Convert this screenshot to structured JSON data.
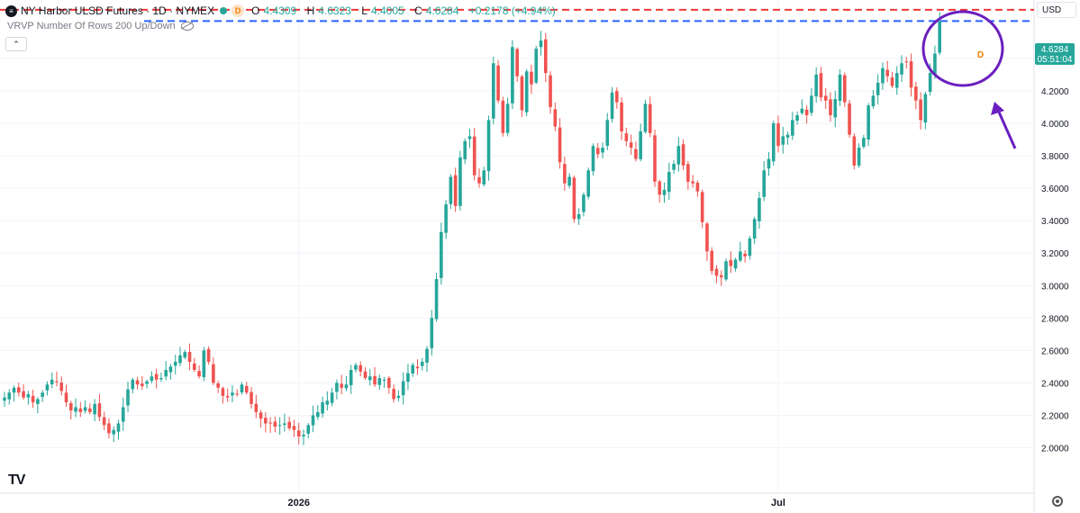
{
  "header": {
    "symbol_icon": "exchange-logo-icon",
    "title": "NY Harbor ULSD Futures · 1D · NYMEX",
    "status_dot_color": "#26a69a",
    "delay_badge": "D",
    "ohlc": {
      "o_label": "O",
      "o": "4.4309",
      "h_label": "H",
      "h": "4.6323",
      "l_label": "L",
      "l": "4.4005",
      "c_label": "C",
      "c": "4.6284",
      "change": "+0.2178 (+4.94%)"
    }
  },
  "indicator": {
    "label": "VRVP Number Of Rows 200 Up/Down",
    "visibility_icon": "eye-hidden-icon"
  },
  "collapse_icon": "chevron-up-icon",
  "currency": "USD",
  "last_price": {
    "value": "4.6284",
    "countdown": "05:51:04",
    "marker": "D"
  },
  "logo": "TV",
  "settings_icon": "gear-icon",
  "colors": {
    "up": "#26a69a",
    "down": "#ef5350",
    "red_line": "#ef3838",
    "blue_line": "#2962ff",
    "annotation": "#6a1fbf"
  },
  "chart_data": {
    "type": "candlestick",
    "title": "NY Harbor ULSD Futures",
    "y_ticks": [
      "2.0000",
      "2.2000",
      "2.4000",
      "2.6000",
      "2.8000",
      "3.0000",
      "3.2000",
      "3.4000",
      "3.6000",
      "3.8000",
      "4.0000",
      "4.2000",
      "4.4000"
    ],
    "ylim": [
      1.72,
      4.76
    ],
    "x_labels": [
      "2026",
      "Jul"
    ],
    "x_label_index": [
      62,
      163
    ],
    "horizontal_lines": [
      {
        "value": 4.7,
        "color": "#ef3838",
        "style": "dashed"
      },
      {
        "value": 4.63,
        "color": "#2962ff",
        "style": "dashed"
      }
    ],
    "annotations": [
      "circle around last candle",
      "arrow pointing to last candle"
    ],
    "series": [
      {
        "name": "",
        "closes": [
          2.31,
          2.34,
          2.37,
          2.34,
          2.31,
          2.33,
          2.28,
          2.3,
          2.34,
          2.39,
          2.42,
          2.41,
          2.35,
          2.28,
          2.23,
          2.25,
          2.22,
          2.25,
          2.22,
          2.27,
          2.19,
          2.14,
          2.09,
          2.11,
          2.15,
          2.25,
          2.36,
          2.42,
          2.39,
          2.38,
          2.41,
          2.44,
          2.42,
          2.43,
          2.48,
          2.5,
          2.53,
          2.57,
          2.59,
          2.53,
          2.48,
          2.44,
          2.6,
          2.53,
          2.4,
          2.37,
          2.32,
          2.31,
          2.34,
          2.33,
          2.39,
          2.34,
          2.27,
          2.22,
          2.18,
          2.15,
          2.15,
          2.13,
          2.14,
          2.15,
          2.12,
          2.11,
          2.07,
          2.08,
          2.14,
          2.2,
          2.22,
          2.28,
          2.29,
          2.34,
          2.4,
          2.37,
          2.39,
          2.48,
          2.51,
          2.47,
          2.43,
          2.44,
          2.39,
          2.43,
          2.42,
          2.37,
          2.3,
          2.32,
          2.41,
          2.46,
          2.51,
          2.49,
          2.53,
          2.61,
          2.8,
          3.04,
          3.33,
          3.5,
          3.67,
          3.49,
          3.79,
          3.89,
          3.92,
          3.68,
          3.63,
          3.71,
          4.02,
          4.37,
          4.14,
          3.94,
          4.12,
          4.47,
          4.29,
          4.08,
          4.32,
          4.24,
          4.46,
          4.51,
          4.31,
          4.1,
          3.98,
          3.76,
          3.63,
          3.67,
          3.41,
          3.44,
          3.56,
          3.71,
          3.86,
          3.81,
          3.85,
          4.02,
          4.19,
          4.13,
          3.95,
          3.89,
          3.85,
          3.78,
          3.95,
          4.12,
          3.94,
          3.64,
          3.56,
          3.59,
          3.7,
          3.75,
          3.86,
          3.74,
          3.64,
          3.63,
          3.58,
          3.39,
          3.21,
          3.09,
          3.06,
          3.05,
          3.15,
          3.12,
          3.16,
          3.21,
          3.18,
          3.29,
          3.41,
          3.54,
          3.71,
          3.78,
          4.0,
          3.86,
          3.92,
          3.93,
          4.02,
          4.05,
          4.09,
          4.05,
          4.17,
          4.3,
          4.16,
          4.14,
          4.05,
          4.15,
          4.3,
          4.13,
          3.93,
          3.74,
          3.85,
          3.91,
          4.11,
          4.17,
          4.25,
          4.34,
          4.29,
          4.23,
          4.31,
          4.37,
          4.38,
          4.22,
          4.14,
          4.02,
          4.18,
          4.31,
          4.43,
          4.63
        ]
      }
    ]
  }
}
